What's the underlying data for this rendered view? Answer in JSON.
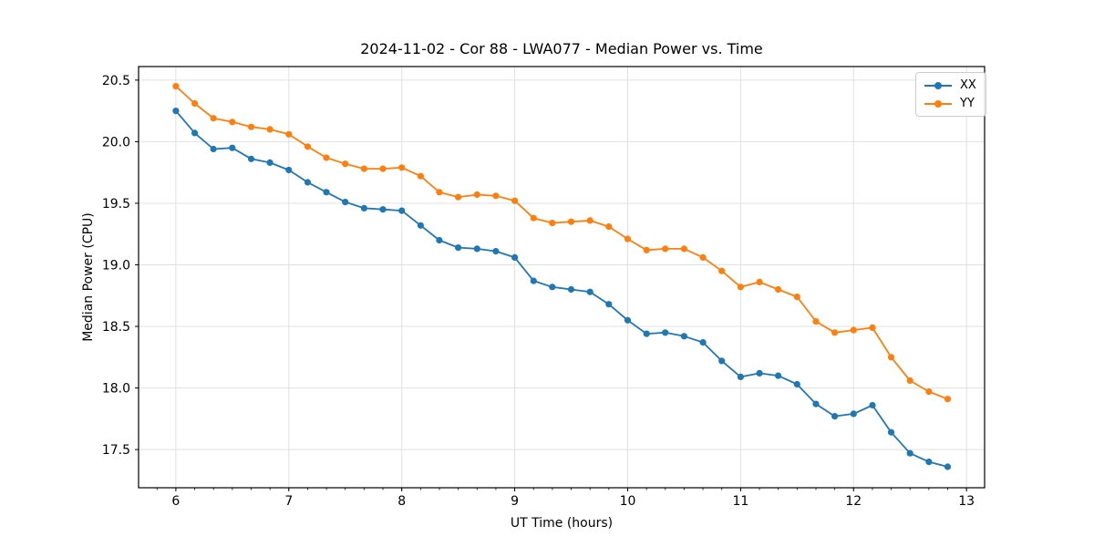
{
  "chart_data": {
    "type": "line",
    "title": "2024-11-02 - Cor 88 - LWA077 - Median Power vs. Time",
    "xlabel": "UT Time (hours)",
    "ylabel": "Median Power (CPU)",
    "xlim": [
      5.67,
      13.16
    ],
    "ylim": [
      17.19,
      20.61
    ],
    "xticks": [
      6,
      7,
      8,
      9,
      10,
      11,
      12,
      13
    ],
    "yticks": [
      17.5,
      18.0,
      18.5,
      19.0,
      19.5,
      20.0,
      20.5
    ],
    "x_minor_tick_step": 0.166667,
    "grid": true,
    "legend_position": "upper right",
    "grid_color": "#e0e0e0",
    "x": [
      6.0,
      6.167,
      6.333,
      6.5,
      6.667,
      6.833,
      7.0,
      7.167,
      7.333,
      7.5,
      7.667,
      7.833,
      8.0,
      8.167,
      8.333,
      8.5,
      8.667,
      8.833,
      9.0,
      9.167,
      9.333,
      9.5,
      9.667,
      9.833,
      10.0,
      10.167,
      10.333,
      10.5,
      10.667,
      10.833,
      11.0,
      11.167,
      11.333,
      11.5,
      11.667,
      11.833,
      12.0,
      12.167,
      12.333,
      12.5,
      12.667,
      12.833
    ],
    "series": [
      {
        "name": "XX",
        "color": "#1f77b4",
        "values": [
          20.25,
          20.07,
          19.94,
          19.95,
          19.86,
          19.83,
          19.77,
          19.67,
          19.59,
          19.51,
          19.46,
          19.45,
          19.44,
          19.32,
          19.2,
          19.14,
          19.13,
          19.11,
          19.06,
          18.87,
          18.82,
          18.8,
          18.78,
          18.68,
          18.55,
          18.44,
          18.45,
          18.42,
          18.37,
          18.22,
          18.09,
          18.12,
          18.1,
          18.03,
          17.87,
          17.77,
          17.79,
          17.86,
          17.64,
          17.47,
          17.4,
          17.36
        ]
      },
      {
        "name": "YY",
        "color": "#ff7f0e",
        "values": [
          20.45,
          20.31,
          20.19,
          20.16,
          20.12,
          20.1,
          20.06,
          19.96,
          19.87,
          19.82,
          19.78,
          19.78,
          19.79,
          19.72,
          19.59,
          19.55,
          19.57,
          19.56,
          19.52,
          19.38,
          19.34,
          19.35,
          19.36,
          19.31,
          19.21,
          19.12,
          19.13,
          19.13,
          19.06,
          18.95,
          18.82,
          18.86,
          18.8,
          18.74,
          18.54,
          18.45,
          18.47,
          18.49,
          18.25,
          18.06,
          17.97,
          17.91
        ]
      }
    ]
  }
}
